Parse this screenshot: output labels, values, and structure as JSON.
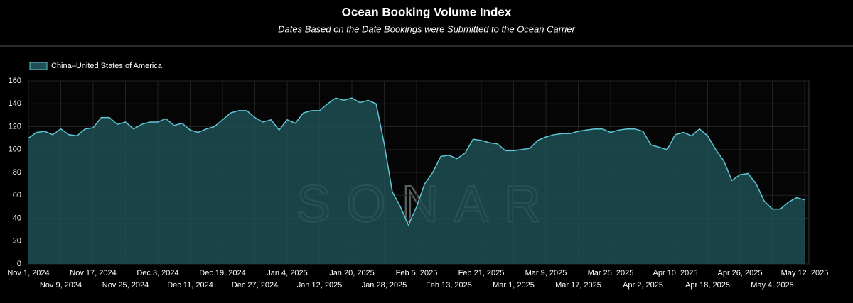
{
  "chart_data": {
    "type": "area",
    "title": "Ocean Booking Volume Index",
    "subtitle": "Dates Based on the Date Bookings were Submitted to the Ocean Carrier",
    "watermark": "SONAR",
    "legend": "top-left",
    "grid": true,
    "x": [
      "2024-11-01",
      "2024-11-03",
      "2024-11-05",
      "2024-11-07",
      "2024-11-09",
      "2024-11-11",
      "2024-11-13",
      "2024-11-15",
      "2024-11-17",
      "2024-11-19",
      "2024-11-21",
      "2024-11-23",
      "2024-11-25",
      "2024-11-27",
      "2024-11-29",
      "2024-12-01",
      "2024-12-03",
      "2024-12-05",
      "2024-12-07",
      "2024-12-09",
      "2024-12-11",
      "2024-12-13",
      "2024-12-15",
      "2024-12-17",
      "2024-12-19",
      "2024-12-21",
      "2024-12-23",
      "2024-12-25",
      "2024-12-27",
      "2024-12-29",
      "2024-12-31",
      "2025-01-02",
      "2025-01-04",
      "2025-01-06",
      "2025-01-08",
      "2025-01-10",
      "2025-01-12",
      "2025-01-14",
      "2025-01-16",
      "2025-01-18",
      "2025-01-20",
      "2025-01-22",
      "2025-01-24",
      "2025-01-26",
      "2025-01-28",
      "2025-01-30",
      "2025-02-01",
      "2025-02-03",
      "2025-02-05",
      "2025-02-07",
      "2025-02-09",
      "2025-02-11",
      "2025-02-13",
      "2025-02-15",
      "2025-02-17",
      "2025-02-19",
      "2025-02-21",
      "2025-02-23",
      "2025-02-25",
      "2025-02-27",
      "2025-03-01",
      "2025-03-03",
      "2025-03-05",
      "2025-03-07",
      "2025-03-09",
      "2025-03-11",
      "2025-03-13",
      "2025-03-15",
      "2025-03-17",
      "2025-03-19",
      "2025-03-21",
      "2025-03-23",
      "2025-03-25",
      "2025-03-27",
      "2025-03-29",
      "2025-03-31",
      "2025-04-02",
      "2025-04-04",
      "2025-04-06",
      "2025-04-08",
      "2025-04-10",
      "2025-04-12",
      "2025-04-14",
      "2025-04-16",
      "2025-04-18",
      "2025-04-20",
      "2025-04-22",
      "2025-04-24",
      "2025-04-26",
      "2025-04-28",
      "2025-04-30",
      "2025-05-02",
      "2025-05-04",
      "2025-05-06",
      "2025-05-08",
      "2025-05-10",
      "2025-05-12"
    ],
    "series": [
      {
        "name": "China–United States of America",
        "color": "#5fc6d4",
        "fill": "#1f4f55",
        "values": [
          110,
          115,
          116,
          113,
          118,
          113,
          112,
          118,
          119,
          128,
          128,
          122,
          124,
          118,
          122,
          124,
          124,
          127,
          121,
          123,
          117,
          115,
          118,
          120,
          126,
          132,
          134,
          134,
          128,
          124,
          126,
          117,
          126,
          123,
          132,
          134,
          134,
          140,
          145,
          143,
          145,
          141,
          143,
          140,
          105,
          63,
          50,
          34,
          50,
          70,
          80,
          94,
          95,
          92,
          97,
          109,
          108,
          106,
          105,
          99,
          99,
          100,
          101,
          108,
          111,
          113,
          114,
          114,
          116,
          117,
          118,
          118,
          115,
          117,
          118,
          118,
          116,
          104,
          102,
          100,
          113,
          115,
          112,
          118,
          112,
          100,
          90,
          73,
          78,
          79,
          70,
          55,
          48,
          48,
          54,
          58,
          56
        ]
      }
    ],
    "xlim": [
      "2024-11-01",
      "2025-05-12"
    ],
    "xticks": [
      {
        "value": "2024-11-01",
        "label": "Nov 1, 2024"
      },
      {
        "value": "2024-11-09",
        "label": "Nov 9, 2024"
      },
      {
        "value": "2024-11-17",
        "label": "Nov 17, 2024"
      },
      {
        "value": "2024-11-25",
        "label": "Nov 25, 2024"
      },
      {
        "value": "2024-12-03",
        "label": "Dec 3, 2024"
      },
      {
        "value": "2024-12-11",
        "label": "Dec 11, 2024"
      },
      {
        "value": "2024-12-19",
        "label": "Dec 19, 2024"
      },
      {
        "value": "2024-12-27",
        "label": "Dec 27, 2024"
      },
      {
        "value": "2025-01-04",
        "label": "Jan 4, 2025"
      },
      {
        "value": "2025-01-12",
        "label": "Jan 12, 2025"
      },
      {
        "value": "2025-01-20",
        "label": "Jan 20, 2025"
      },
      {
        "value": "2025-01-28",
        "label": "Jan 28, 2025"
      },
      {
        "value": "2025-02-05",
        "label": "Feb 5, 2025"
      },
      {
        "value": "2025-02-13",
        "label": "Feb 13, 2025"
      },
      {
        "value": "2025-02-21",
        "label": "Feb 21, 2025"
      },
      {
        "value": "2025-03-01",
        "label": "Mar 1, 2025"
      },
      {
        "value": "2025-03-09",
        "label": "Mar 9, 2025"
      },
      {
        "value": "2025-03-17",
        "label": "Mar 17, 2025"
      },
      {
        "value": "2025-03-25",
        "label": "Mar 25, 2025"
      },
      {
        "value": "2025-04-02",
        "label": "Apr 2, 2025"
      },
      {
        "value": "2025-04-10",
        "label": "Apr 10, 2025"
      },
      {
        "value": "2025-04-18",
        "label": "Apr 18, 2025"
      },
      {
        "value": "2025-04-26",
        "label": "Apr 26, 2025"
      },
      {
        "value": "2025-05-04",
        "label": "May 4, 2025"
      },
      {
        "value": "2025-05-12",
        "label": "May 12, 2025"
      }
    ],
    "ylim": [
      0,
      160
    ],
    "yticks": [
      0,
      20,
      40,
      60,
      80,
      100,
      120,
      140,
      160
    ]
  }
}
